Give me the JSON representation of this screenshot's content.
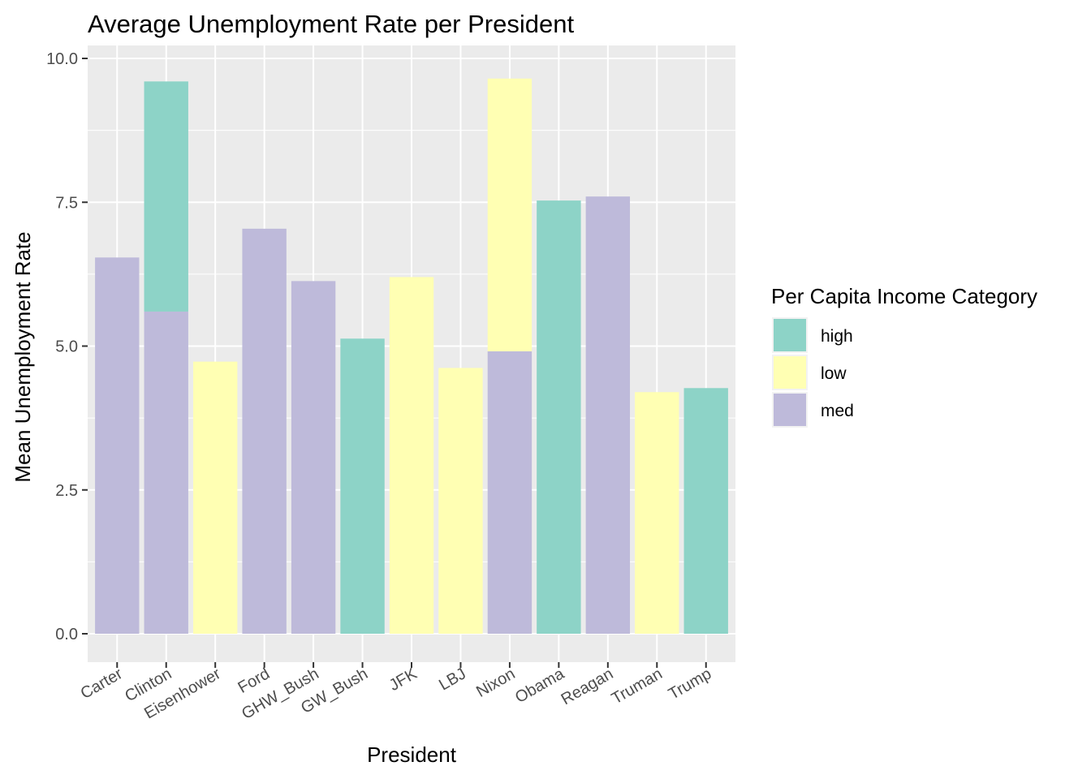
{
  "chart_data": {
    "type": "bar",
    "stacked": true,
    "title": "Average Unemployment Rate per President",
    "xlabel": "President",
    "ylabel": "Mean Unemployment Rate",
    "ylim": [
      0,
      10
    ],
    "yticks": [
      "0.0",
      "2.5",
      "5.0",
      "7.5",
      "10.0"
    ],
    "categories": [
      "Carter",
      "Clinton",
      "Eisenhower",
      "Ford",
      "GHW_Bush",
      "GW_Bush",
      "JFK",
      "LBJ",
      "Nixon",
      "Obama",
      "Reagan",
      "Truman",
      "Trump"
    ],
    "series": [
      {
        "name": "high",
        "color": "#8dd3c7",
        "values": [
          0,
          4.0,
          0,
          0,
          0,
          5.13,
          0,
          0,
          0,
          7.53,
          0,
          0,
          4.27
        ]
      },
      {
        "name": "low",
        "color": "#ffffb3",
        "values": [
          0,
          0,
          4.73,
          0,
          0,
          0,
          6.2,
          4.62,
          4.74,
          0,
          0,
          4.2,
          0
        ]
      },
      {
        "name": "med",
        "color": "#bebada",
        "values": [
          6.54,
          5.6,
          0,
          7.04,
          6.13,
          0,
          0,
          0,
          4.91,
          0,
          7.6,
          0,
          0
        ]
      }
    ],
    "legend": {
      "title": "Per Capita Income Category",
      "placement": "right"
    },
    "grid": true
  }
}
